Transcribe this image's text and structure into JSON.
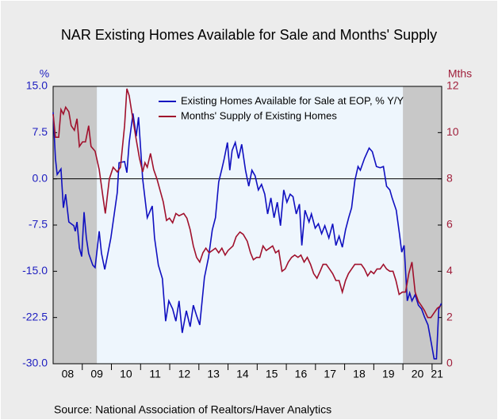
{
  "chart_data": {
    "type": "line",
    "title": "NAR Existing Homes Available for Sale and Months' Supply",
    "source": "Source:  National Association of Realtors/Haver Analytics",
    "ylabel": "%",
    "y2label": "Mths",
    "xlim": [
      2008.0,
      2021.33
    ],
    "xticks": [
      {
        "value": 2008.5,
        "label": "08"
      },
      {
        "value": 2009.5,
        "label": "09"
      },
      {
        "value": 2010.5,
        "label": "10"
      },
      {
        "value": 2011.5,
        "label": "11"
      },
      {
        "value": 2012.5,
        "label": "12"
      },
      {
        "value": 2013.5,
        "label": "13"
      },
      {
        "value": 2014.5,
        "label": "14"
      },
      {
        "value": 2015.5,
        "label": "15"
      },
      {
        "value": 2016.5,
        "label": "16"
      },
      {
        "value": 2017.5,
        "label": "17"
      },
      {
        "value": 2018.5,
        "label": "18"
      },
      {
        "value": 2019.5,
        "label": "19"
      },
      {
        "value": 2020.5,
        "label": "20"
      },
      {
        "value": 2021.17,
        "label": "21"
      }
    ],
    "ylim": [
      -30,
      15
    ],
    "yticks": [
      {
        "value": 15,
        "label": "15.0"
      },
      7.5,
      {
        "value": 0,
        "label": "0.0"
      },
      -7.5,
      {
        "value": -15,
        "label": "-15.0"
      },
      -22.5,
      {
        "value": -30,
        "label": "-30.0"
      }
    ],
    "y2lim": [
      0,
      12
    ],
    "y2ticks": [
      0,
      2,
      4,
      6,
      8,
      10,
      12
    ],
    "zero_line": true,
    "legend": "top",
    "shaded_periods": [
      [
        2008.0,
        2009.5
      ],
      [
        2020.0,
        2021.33
      ]
    ],
    "series": [
      {
        "name": "Existing Homes Available for Sale at EOP, % Y/Y",
        "color": "#1010c0",
        "x": [
          2008.0,
          2008.08,
          2008.14,
          2008.27,
          2008.35,
          2008.43,
          2008.54,
          2008.71,
          2008.76,
          2008.82,
          2008.9,
          2008.98,
          2009.06,
          2009.14,
          2009.22,
          2009.36,
          2009.44,
          2009.58,
          2009.66,
          2009.77,
          2009.85,
          2009.98,
          2010.2,
          2010.26,
          2010.45,
          2010.53,
          2010.61,
          2010.74,
          2010.85,
          2010.93,
          2011.07,
          2011.23,
          2011.4,
          2011.48,
          2011.61,
          2011.75,
          2011.86,
          2011.97,
          2012.1,
          2012.21,
          2012.32,
          2012.43,
          2012.57,
          2012.7,
          2012.81,
          2012.92,
          2013.03,
          2013.19,
          2013.33,
          2013.46,
          2013.57,
          2013.68,
          2013.79,
          2013.87,
          2013.98,
          2014.06,
          2014.14,
          2014.25,
          2014.36,
          2014.47,
          2014.6,
          2014.71,
          2014.82,
          2014.93,
          2015.04,
          2015.15,
          2015.26,
          2015.36,
          2015.47,
          2015.58,
          2015.69,
          2015.8,
          2015.91,
          2016.02,
          2016.13,
          2016.23,
          2016.34,
          2016.45,
          2016.53,
          2016.64,
          2016.78,
          2016.86,
          2016.99,
          2017.1,
          2017.21,
          2017.32,
          2017.46,
          2017.59,
          2017.7,
          2017.81,
          2017.92,
          2018.03,
          2018.14,
          2018.24,
          2018.35,
          2018.46,
          2018.54,
          2018.68,
          2018.84,
          2018.95,
          2019.09,
          2019.22,
          2019.33,
          2019.44,
          2019.55,
          2019.63,
          2019.77,
          2019.88,
          2019.96,
          2020.04,
          2020.15,
          2020.23,
          2020.31,
          2020.42,
          2020.53,
          2020.64,
          2020.74,
          2020.86,
          2020.96,
          2021.07,
          2021.15,
          2021.23,
          2021.32
        ],
        "values": [
          10.8,
          3.3,
          0.7,
          1.6,
          -4.7,
          -2.5,
          -7.0,
          -7.6,
          -8.5,
          -7.0,
          -11.2,
          -12.6,
          -5.4,
          -9.6,
          -12.1,
          -14.0,
          -14.4,
          -8.5,
          -12.1,
          -14.7,
          -12.8,
          -9.6,
          -2.2,
          2.6,
          2.8,
          1.0,
          5.9,
          10.6,
          6.9,
          10.0,
          0.0,
          -6.3,
          -4.4,
          -9.6,
          -14.0,
          -16.2,
          -23.1,
          -19.8,
          -21.1,
          -23.1,
          -19.8,
          -25.0,
          -21.4,
          -24.0,
          -20.5,
          -22.2,
          -23.7,
          -16.0,
          -12.8,
          -8.3,
          -6.3,
          -0.5,
          1.6,
          3.3,
          5.9,
          1.4,
          4.6,
          5.9,
          3.3,
          5.6,
          1.4,
          -1.2,
          1.4,
          0.5,
          -1.8,
          -0.9,
          -2.5,
          -5.7,
          -3.1,
          -6.3,
          -3.8,
          -7.6,
          -1.8,
          -3.8,
          -2.5,
          -2.9,
          -5.7,
          -4.1,
          -10.8,
          -5.1,
          -7.0,
          -5.7,
          -8.0,
          -7.3,
          -8.9,
          -7.6,
          -9.6,
          -7.3,
          -10.8,
          -9.3,
          -11.1,
          -8.3,
          -6.3,
          -4.7,
          -0.3,
          2.0,
          1.4,
          3.3,
          5.0,
          4.4,
          2.0,
          1.8,
          2.0,
          -1.2,
          -1.8,
          -3.1,
          -5.1,
          -8.9,
          -11.9,
          -10.8,
          -19.8,
          -18.5,
          -19.8,
          -18.8,
          -20.5,
          -21.1,
          -22.4,
          -23.7,
          -26.3,
          -29.2,
          -29.2,
          -21.1,
          -20.2
        ]
      },
      {
        "name": "Months' Supply of Existing Homes",
        "color": "#a0102c",
        "axis": "y2",
        "x": [
          2008.0,
          2008.08,
          2008.19,
          2008.27,
          2008.35,
          2008.43,
          2008.54,
          2008.62,
          2008.73,
          2008.82,
          2008.9,
          2009.01,
          2009.11,
          2009.22,
          2009.3,
          2009.44,
          2009.58,
          2009.71,
          2009.79,
          2009.93,
          2010.06,
          2010.2,
          2010.31,
          2010.45,
          2010.53,
          2010.61,
          2010.72,
          2010.85,
          2010.96,
          2011.07,
          2011.15,
          2011.23,
          2011.34,
          2011.45,
          2011.56,
          2011.67,
          2011.78,
          2011.89,
          2011.99,
          2012.1,
          2012.21,
          2012.32,
          2012.48,
          2012.59,
          2012.7,
          2012.81,
          2012.92,
          2013.03,
          2013.14,
          2013.24,
          2013.35,
          2013.46,
          2013.57,
          2013.68,
          2013.79,
          2013.9,
          2014.0,
          2014.17,
          2014.28,
          2014.41,
          2014.52,
          2014.66,
          2014.77,
          2014.87,
          2014.98,
          2015.09,
          2015.2,
          2015.31,
          2015.42,
          2015.53,
          2015.63,
          2015.74,
          2015.85,
          2015.96,
          2016.07,
          2016.18,
          2016.29,
          2016.4,
          2016.5,
          2016.61,
          2016.72,
          2016.83,
          2016.94,
          2017.05,
          2017.16,
          2017.26,
          2017.37,
          2017.48,
          2017.59,
          2017.7,
          2017.81,
          2017.92,
          2018.03,
          2018.13,
          2018.24,
          2018.35,
          2018.46,
          2018.57,
          2018.68,
          2018.79,
          2018.9,
          2019.0,
          2019.11,
          2019.22,
          2019.33,
          2019.44,
          2019.55,
          2019.66,
          2019.76,
          2019.87,
          2019.98,
          2020.09,
          2020.2,
          2020.31,
          2020.42,
          2020.53,
          2020.64,
          2020.74,
          2020.85,
          2020.96,
          2021.07,
          2021.18,
          2021.29
        ],
        "values": [
          10.8,
          9.8,
          9.8,
          11.0,
          10.8,
          11.1,
          10.9,
          10.3,
          10.1,
          10.6,
          9.4,
          9.6,
          9.6,
          10.3,
          9.4,
          9.2,
          8.4,
          7.2,
          6.5,
          8.0,
          8.5,
          8.3,
          8.5,
          10.3,
          11.9,
          11.6,
          10.7,
          9.7,
          8.9,
          8.3,
          8.7,
          8.5,
          9.1,
          8.4,
          8.0,
          7.5,
          7.0,
          6.2,
          6.3,
          6.1,
          6.5,
          6.4,
          6.5,
          6.3,
          5.8,
          5.1,
          4.6,
          4.4,
          4.8,
          5.0,
          4.8,
          4.9,
          5.0,
          4.8,
          5.0,
          4.7,
          4.9,
          5.1,
          5.5,
          5.7,
          5.6,
          5.3,
          4.8,
          4.5,
          4.6,
          4.6,
          5.1,
          4.9,
          5.0,
          5.1,
          4.8,
          4.9,
          4.0,
          4.1,
          4.4,
          4.6,
          4.7,
          4.6,
          4.7,
          4.4,
          4.6,
          4.3,
          3.9,
          3.7,
          4.0,
          4.3,
          4.3,
          4.1,
          3.9,
          3.6,
          3.6,
          3.1,
          3.6,
          3.9,
          4.1,
          4.3,
          4.3,
          4.3,
          4.1,
          3.8,
          4.0,
          3.9,
          4.1,
          4.1,
          4.3,
          4.1,
          4.0,
          4.0,
          3.6,
          3.0,
          3.1,
          3.1,
          3.9,
          4.4,
          3.1,
          2.7,
          2.5,
          2.3,
          2.0,
          2.0,
          2.2,
          2.4,
          2.5
        ]
      }
    ]
  }
}
